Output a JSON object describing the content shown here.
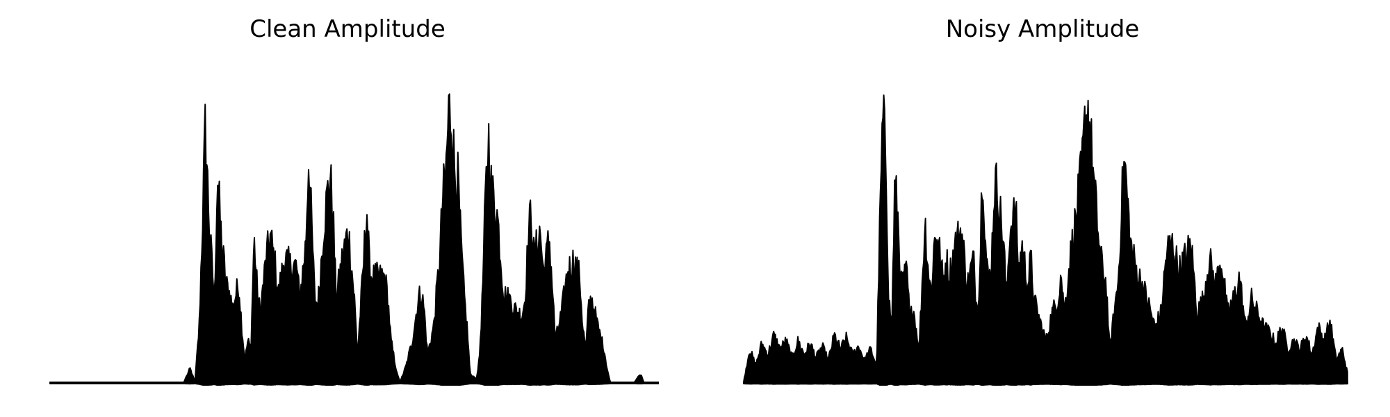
{
  "chart_data": [
    {
      "type": "area",
      "title": "Clean Amplitude",
      "axes_visible": false,
      "grid": false,
      "color": "#000000",
      "x_range": [
        0,
        1
      ],
      "ylim": [
        0,
        1
      ],
      "keypoints": [
        [
          0.0,
          0.0
        ],
        [
          0.22,
          0.0
        ],
        [
          0.23,
          0.05
        ],
        [
          0.238,
          0.0
        ],
        [
          0.245,
          0.2
        ],
        [
          0.25,
          0.55
        ],
        [
          0.255,
          0.93
        ],
        [
          0.262,
          0.55
        ],
        [
          0.27,
          0.3
        ],
        [
          0.275,
          0.75
        ],
        [
          0.282,
          0.5
        ],
        [
          0.29,
          0.35
        ],
        [
          0.295,
          0.32
        ],
        [
          0.3,
          0.27
        ],
        [
          0.31,
          0.36
        ],
        [
          0.315,
          0.2
        ],
        [
          0.32,
          0.08
        ],
        [
          0.325,
          0.15
        ],
        [
          0.33,
          0.12
        ],
        [
          0.335,
          0.52
        ],
        [
          0.34,
          0.35
        ],
        [
          0.345,
          0.25
        ],
        [
          0.355,
          0.45
        ],
        [
          0.362,
          0.53
        ],
        [
          0.37,
          0.42
        ],
        [
          0.375,
          0.32
        ],
        [
          0.385,
          0.45
        ],
        [
          0.395,
          0.42
        ],
        [
          0.405,
          0.42
        ],
        [
          0.41,
          0.3
        ],
        [
          0.42,
          0.5
        ],
        [
          0.425,
          0.83
        ],
        [
          0.43,
          0.55
        ],
        [
          0.435,
          0.3
        ],
        [
          0.44,
          0.28
        ],
        [
          0.45,
          0.57
        ],
        [
          0.455,
          0.67
        ],
        [
          0.46,
          0.75
        ],
        [
          0.465,
          0.6
        ],
        [
          0.47,
          0.3
        ],
        [
          0.48,
          0.45
        ],
        [
          0.49,
          0.55
        ],
        [
          0.5,
          0.3
        ],
        [
          0.505,
          0.1
        ],
        [
          0.515,
          0.43
        ],
        [
          0.52,
          0.65
        ],
        [
          0.525,
          0.4
        ],
        [
          0.53,
          0.38
        ],
        [
          0.54,
          0.38
        ],
        [
          0.55,
          0.38
        ],
        [
          0.555,
          0.3
        ],
        [
          0.56,
          0.15
        ],
        [
          0.57,
          0.03
        ],
        [
          0.575,
          0.0
        ],
        [
          0.585,
          0.06
        ],
        [
          0.595,
          0.15
        ],
        [
          0.605,
          0.3
        ],
        [
          0.61,
          0.33
        ],
        [
          0.615,
          0.25
        ],
        [
          0.62,
          0.1
        ],
        [
          0.63,
          0.2
        ],
        [
          0.64,
          0.45
        ],
        [
          0.645,
          0.67
        ],
        [
          0.65,
          0.75
        ],
        [
          0.655,
          0.99
        ],
        [
          0.66,
          0.95
        ],
        [
          0.665,
          0.75
        ],
        [
          0.67,
          0.73
        ],
        [
          0.675,
          0.5
        ],
        [
          0.68,
          0.32
        ],
        [
          0.685,
          0.2
        ],
        [
          0.69,
          0.03
        ],
        [
          0.7,
          0.01
        ],
        [
          0.705,
          0.08
        ],
        [
          0.71,
          0.3
        ],
        [
          0.715,
          0.65
        ],
        [
          0.72,
          0.9
        ],
        [
          0.725,
          0.7
        ],
        [
          0.735,
          0.6
        ],
        [
          0.745,
          0.32
        ],
        [
          0.755,
          0.3
        ],
        [
          0.765,
          0.26
        ],
        [
          0.775,
          0.24
        ],
        [
          0.78,
          0.3
        ],
        [
          0.785,
          0.5
        ],
        [
          0.79,
          0.63
        ],
        [
          0.795,
          0.45
        ],
        [
          0.805,
          0.55
        ],
        [
          0.81,
          0.4
        ],
        [
          0.815,
          0.45
        ],
        [
          0.82,
          0.53
        ],
        [
          0.825,
          0.35
        ],
        [
          0.83,
          0.15
        ],
        [
          0.84,
          0.25
        ],
        [
          0.85,
          0.4
        ],
        [
          0.86,
          0.44
        ],
        [
          0.87,
          0.38
        ],
        [
          0.875,
          0.2
        ],
        [
          0.88,
          0.12
        ],
        [
          0.885,
          0.28
        ],
        [
          0.89,
          0.3
        ],
        [
          0.895,
          0.25
        ],
        [
          0.9,
          0.2
        ],
        [
          0.91,
          0.12
        ],
        [
          0.915,
          0.05
        ],
        [
          0.92,
          0.0
        ],
        [
          0.95,
          0.0
        ],
        [
          0.96,
          0.0
        ],
        [
          0.97,
          0.03
        ],
        [
          0.975,
          0.0
        ]
      ]
    },
    {
      "type": "area",
      "title": "Noisy Amplitude",
      "axes_visible": false,
      "grid": false,
      "color": "#000000",
      "x_range": [
        0,
        1
      ],
      "ylim": [
        0,
        1
      ],
      "keypoints": [
        [
          0.0,
          0.0
        ],
        [
          0.01,
          0.12
        ],
        [
          0.02,
          0.06
        ],
        [
          0.03,
          0.14
        ],
        [
          0.04,
          0.1
        ],
        [
          0.05,
          0.17
        ],
        [
          0.06,
          0.12
        ],
        [
          0.07,
          0.15
        ],
        [
          0.08,
          0.09
        ],
        [
          0.09,
          0.15
        ],
        [
          0.1,
          0.1
        ],
        [
          0.11,
          0.14
        ],
        [
          0.12,
          0.09
        ],
        [
          0.13,
          0.13
        ],
        [
          0.14,
          0.08
        ],
        [
          0.15,
          0.17
        ],
        [
          0.16,
          0.12
        ],
        [
          0.17,
          0.16
        ],
        [
          0.18,
          0.1
        ],
        [
          0.19,
          0.13
        ],
        [
          0.2,
          0.08
        ],
        [
          0.21,
          0.12
        ],
        [
          0.22,
          0.06
        ],
        [
          0.225,
          0.55
        ],
        [
          0.23,
          0.95
        ],
        [
          0.235,
          0.85
        ],
        [
          0.24,
          0.3
        ],
        [
          0.245,
          0.2
        ],
        [
          0.25,
          0.72
        ],
        [
          0.255,
          0.6
        ],
        [
          0.26,
          0.35
        ],
        [
          0.27,
          0.4
        ],
        [
          0.275,
          0.22
        ],
        [
          0.28,
          0.28
        ],
        [
          0.29,
          0.12
        ],
        [
          0.3,
          0.58
        ],
        [
          0.305,
          0.42
        ],
        [
          0.31,
          0.32
        ],
        [
          0.315,
          0.5
        ],
        [
          0.32,
          0.55
        ],
        [
          0.33,
          0.36
        ],
        [
          0.335,
          0.45
        ],
        [
          0.34,
          0.38
        ],
        [
          0.35,
          0.5
        ],
        [
          0.36,
          0.55
        ],
        [
          0.37,
          0.35
        ],
        [
          0.38,
          0.45
        ],
        [
          0.385,
          0.28
        ],
        [
          0.39,
          0.35
        ],
        [
          0.395,
          0.82
        ],
        [
          0.4,
          0.5
        ],
        [
          0.405,
          0.35
        ],
        [
          0.41,
          0.45
        ],
        [
          0.415,
          0.72
        ],
        [
          0.42,
          0.7
        ],
        [
          0.43,
          0.5
        ],
        [
          0.435,
          0.3
        ],
        [
          0.44,
          0.55
        ],
        [
          0.45,
          0.62
        ],
        [
          0.455,
          0.4
        ],
        [
          0.46,
          0.5
        ],
        [
          0.47,
          0.35
        ],
        [
          0.475,
          0.45
        ],
        [
          0.48,
          0.3
        ],
        [
          0.49,
          0.22
        ],
        [
          0.5,
          0.15
        ],
        [
          0.51,
          0.25
        ],
        [
          0.52,
          0.3
        ],
        [
          0.525,
          0.4
        ],
        [
          0.53,
          0.25
        ],
        [
          0.54,
          0.45
        ],
        [
          0.55,
          0.6
        ],
        [
          0.56,
          0.79
        ],
        [
          0.565,
          0.95
        ],
        [
          0.57,
          0.99
        ],
        [
          0.575,
          0.85
        ],
        [
          0.58,
          0.7
        ],
        [
          0.59,
          0.45
        ],
        [
          0.6,
          0.35
        ],
        [
          0.605,
          0.12
        ],
        [
          0.61,
          0.2
        ],
        [
          0.62,
          0.38
        ],
        [
          0.625,
          0.65
        ],
        [
          0.63,
          0.8
        ],
        [
          0.635,
          0.65
        ],
        [
          0.64,
          0.5
        ],
        [
          0.65,
          0.4
        ],
        [
          0.66,
          0.35
        ],
        [
          0.67,
          0.28
        ],
        [
          0.68,
          0.2
        ],
        [
          0.69,
          0.25
        ],
        [
          0.7,
          0.48
        ],
        [
          0.71,
          0.5
        ],
        [
          0.72,
          0.4
        ],
        [
          0.73,
          0.45
        ],
        [
          0.74,
          0.5
        ],
        [
          0.75,
          0.25
        ],
        [
          0.76,
          0.3
        ],
        [
          0.77,
          0.45
        ],
        [
          0.78,
          0.35
        ],
        [
          0.79,
          0.45
        ],
        [
          0.8,
          0.25
        ],
        [
          0.81,
          0.3
        ],
        [
          0.82,
          0.38
        ],
        [
          0.83,
          0.2
        ],
        [
          0.84,
          0.3
        ],
        [
          0.85,
          0.25
        ],
        [
          0.86,
          0.2
        ],
        [
          0.87,
          0.18
        ],
        [
          0.88,
          0.14
        ],
        [
          0.89,
          0.2
        ],
        [
          0.9,
          0.12
        ],
        [
          0.91,
          0.15
        ],
        [
          0.92,
          0.12
        ],
        [
          0.93,
          0.17
        ],
        [
          0.94,
          0.1
        ],
        [
          0.95,
          0.2
        ],
        [
          0.96,
          0.15
        ],
        [
          0.97,
          0.22
        ],
        [
          0.98,
          0.08
        ],
        [
          0.99,
          0.12
        ],
        [
          1.0,
          0.02
        ]
      ]
    }
  ]
}
